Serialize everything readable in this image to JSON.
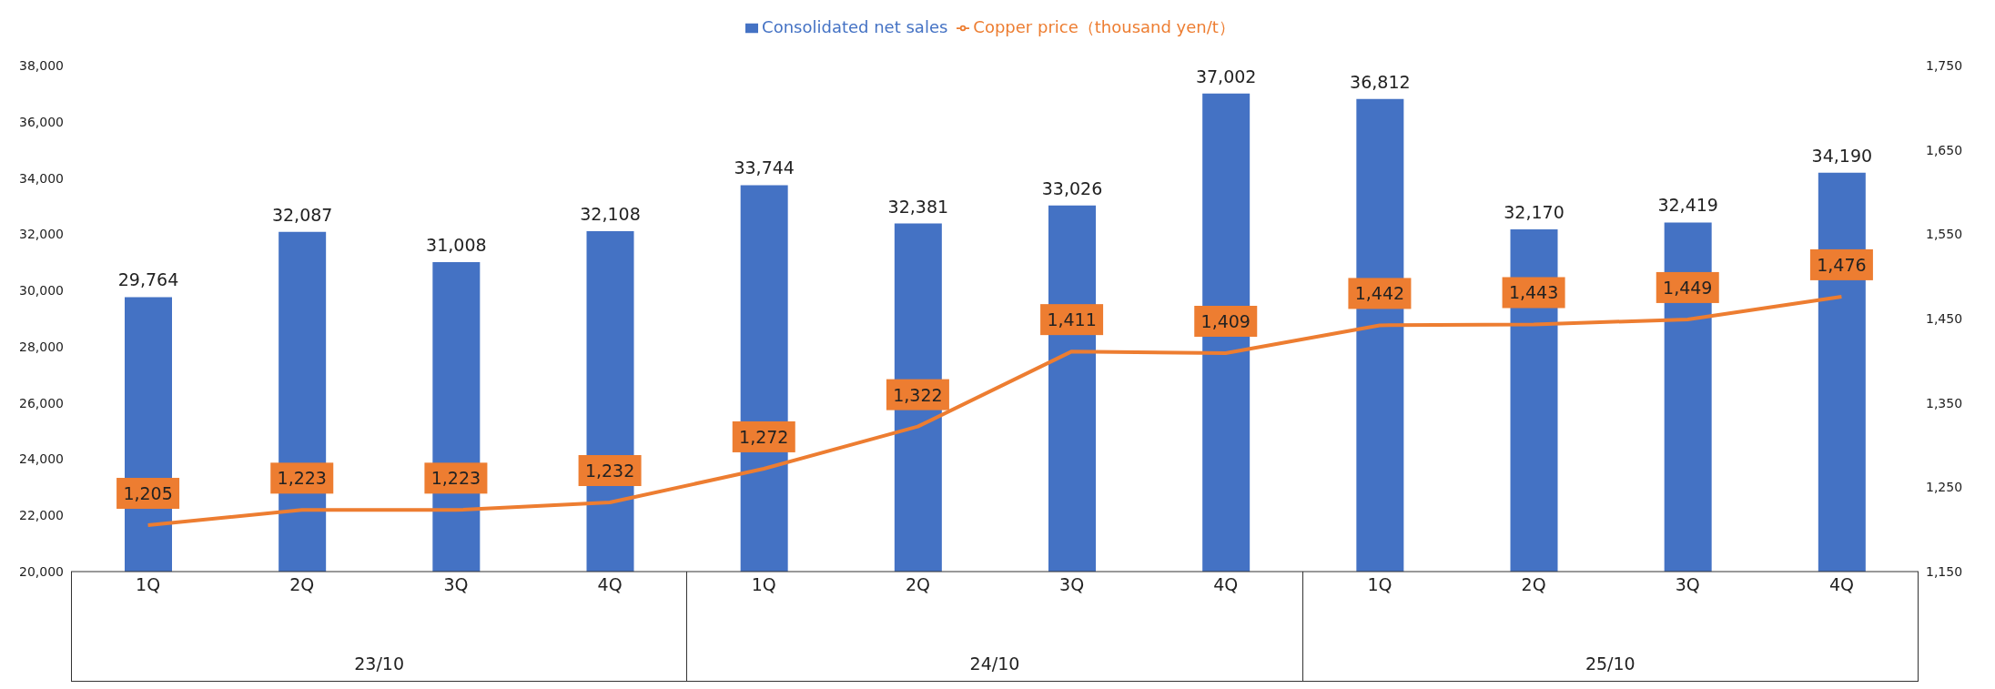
{
  "chart_data": {
    "type": "bar",
    "categories": [
      "1Q",
      "2Q",
      "3Q",
      "4Q",
      "1Q",
      "2Q",
      "3Q",
      "4Q",
      "1Q",
      "2Q",
      "3Q",
      "4Q"
    ],
    "series": [
      {
        "name": "Consolidated net sales",
        "color": "#4472c4",
        "values": [
          29764,
          32087,
          31008,
          32108,
          33744,
          32381,
          33026,
          37002,
          36812,
          32170,
          32419,
          34190
        ],
        "value_labels": [
          "29,764",
          "32,087",
          "31,008",
          "32,108",
          "33,744",
          "32,381",
          "33,026",
          "37,002",
          "36,812",
          "32,170",
          "32,419",
          "34,190"
        ]
      },
      {
        "name": "Copper price（thousand yen/t）",
        "type": "line",
        "axis": "y2",
        "color": "#ed7d31",
        "values": [
          1205,
          1223,
          1223,
          1232,
          1272,
          1322,
          1411,
          1409,
          1442,
          1443,
          1449,
          1476
        ],
        "value_labels": [
          "1,205",
          "1,223",
          "1,223",
          "1,232",
          "1,272",
          "1,322",
          "1,411",
          "1,409",
          "1,442",
          "1,443",
          "1,449",
          "1,476"
        ]
      }
    ],
    "ylim": [
      20000,
      38000
    ],
    "yticks": [
      {
        "value": 20000,
        "label": "20,000"
      },
      {
        "value": 22000,
        "label": "22,000"
      },
      {
        "value": 24000,
        "label": "24,000"
      },
      {
        "value": 26000,
        "label": "26,000"
      },
      {
        "value": 28000,
        "label": "28,000"
      },
      {
        "value": 30000,
        "label": "30,000"
      },
      {
        "value": 32000,
        "label": "32,000"
      },
      {
        "value": 34000,
        "label": "34,000"
      },
      {
        "value": 36000,
        "label": "36,000"
      },
      {
        "value": 38000,
        "label": "38,000"
      }
    ],
    "y2lim": [
      1150,
      1750
    ],
    "y2ticks": [
      {
        "value": 1150,
        "label": "1,150"
      },
      {
        "value": 1250,
        "label": "1,250"
      },
      {
        "value": 1350,
        "label": "1,350"
      },
      {
        "value": 1450,
        "label": "1,450"
      },
      {
        "value": 1550,
        "label": "1,550"
      },
      {
        "value": 1650,
        "label": "1,650"
      },
      {
        "value": 1750,
        "label": "1,750"
      }
    ],
    "annotations": [
      "23/10",
      "24/10",
      "25/10"
    ],
    "legend": "top",
    "marker": "none",
    "line_style": "solid"
  }
}
